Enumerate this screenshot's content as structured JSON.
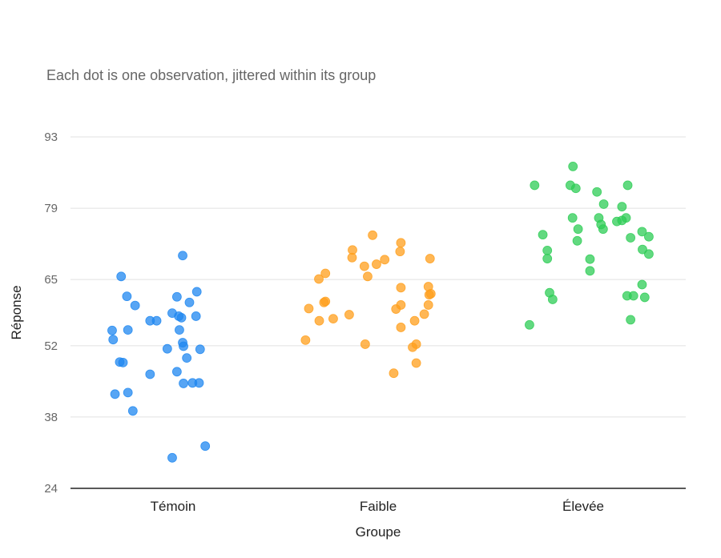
{
  "chart_data": {
    "type": "scatter",
    "subtitle": "Each dot is one observation, jittered within its group",
    "xlabel": "Groupe",
    "ylabel": "Réponse",
    "ylim": [
      24,
      93
    ],
    "yticks": [
      24,
      38,
      52,
      65,
      79,
      93
    ],
    "ytick_labels": [
      "24",
      "38",
      "52",
      "65",
      "79",
      "93"
    ],
    "grid": true,
    "categories": [
      "Témoin",
      "Faible",
      "Élevée"
    ],
    "colors": [
      "#1f87f0",
      "#ff9f1c",
      "#2ecc55"
    ],
    "series": [
      {
        "category": "Témoin",
        "points": [
          {
            "offset": -0.253,
            "y": 65.6
          },
          {
            "offset": 0.047,
            "y": 69.7
          },
          {
            "offset": -0.225,
            "y": 61.7
          },
          {
            "offset": 0.019,
            "y": 61.6
          },
          {
            "offset": 0.116,
            "y": 62.6
          },
          {
            "offset": 0.08,
            "y": 60.5
          },
          {
            "offset": -0.185,
            "y": 59.9
          },
          {
            "offset": -0.004,
            "y": 58.4
          },
          {
            "offset": 0.028,
            "y": 57.8
          },
          {
            "offset": 0.041,
            "y": 57.5
          },
          {
            "offset": 0.112,
            "y": 57.8
          },
          {
            "offset": -0.112,
            "y": 56.9
          },
          {
            "offset": -0.08,
            "y": 56.9
          },
          {
            "offset": -0.297,
            "y": 55.0
          },
          {
            "offset": -0.22,
            "y": 55.1
          },
          {
            "offset": 0.031,
            "y": 55.1
          },
          {
            "offset": -0.292,
            "y": 53.2
          },
          {
            "offset": 0.047,
            "y": 52.6
          },
          {
            "offset": 0.051,
            "y": 51.9
          },
          {
            "offset": -0.028,
            "y": 51.4
          },
          {
            "offset": 0.132,
            "y": 51.3
          },
          {
            "offset": 0.067,
            "y": 49.6
          },
          {
            "offset": -0.26,
            "y": 48.8
          },
          {
            "offset": -0.244,
            "y": 48.7
          },
          {
            "offset": 0.019,
            "y": 46.9
          },
          {
            "offset": -0.112,
            "y": 46.4
          },
          {
            "offset": 0.051,
            "y": 44.6
          },
          {
            "offset": 0.095,
            "y": 44.7
          },
          {
            "offset": 0.127,
            "y": 44.7
          },
          {
            "offset": -0.283,
            "y": 42.5
          },
          {
            "offset": -0.22,
            "y": 42.8
          },
          {
            "offset": -0.196,
            "y": 39.2
          },
          {
            "offset": 0.157,
            "y": 32.3
          },
          {
            "offset": -0.004,
            "y": 30.0
          }
        ]
      },
      {
        "category": "Faible",
        "points": [
          {
            "offset": -0.027,
            "y": 73.7
          },
          {
            "offset": 0.111,
            "y": 72.2
          },
          {
            "offset": -0.125,
            "y": 70.8
          },
          {
            "offset": 0.107,
            "y": 70.5
          },
          {
            "offset": -0.127,
            "y": 69.3
          },
          {
            "offset": 0.032,
            "y": 68.9
          },
          {
            "offset": -0.008,
            "y": 68.0
          },
          {
            "offset": -0.067,
            "y": 67.6
          },
          {
            "offset": 0.253,
            "y": 69.1
          },
          {
            "offset": -0.257,
            "y": 66.2
          },
          {
            "offset": -0.289,
            "y": 65.1
          },
          {
            "offset": -0.051,
            "y": 65.6
          },
          {
            "offset": 0.245,
            "y": 63.6
          },
          {
            "offset": 0.111,
            "y": 63.4
          },
          {
            "offset": 0.249,
            "y": 62.0
          },
          {
            "offset": 0.257,
            "y": 62.2
          },
          {
            "offset": -0.264,
            "y": 60.5
          },
          {
            "offset": -0.257,
            "y": 60.7
          },
          {
            "offset": 0.245,
            "y": 60.0
          },
          {
            "offset": 0.111,
            "y": 60.0
          },
          {
            "offset": 0.087,
            "y": 59.2
          },
          {
            "offset": -0.338,
            "y": 59.3
          },
          {
            "offset": -0.141,
            "y": 58.1
          },
          {
            "offset": 0.225,
            "y": 58.2
          },
          {
            "offset": -0.219,
            "y": 57.3
          },
          {
            "offset": -0.287,
            "y": 56.9
          },
          {
            "offset": 0.178,
            "y": 56.9
          },
          {
            "offset": 0.111,
            "y": 55.6
          },
          {
            "offset": -0.354,
            "y": 53.1
          },
          {
            "offset": -0.063,
            "y": 52.3
          },
          {
            "offset": 0.186,
            "y": 52.3
          },
          {
            "offset": 0.168,
            "y": 51.7
          },
          {
            "offset": 0.186,
            "y": 48.6
          },
          {
            "offset": 0.076,
            "y": 46.6
          }
        ]
      },
      {
        "category": "Élevée",
        "points": [
          {
            "offset": -0.05,
            "y": 87.2
          },
          {
            "offset": -0.237,
            "y": 83.5
          },
          {
            "offset": -0.063,
            "y": 83.5
          },
          {
            "offset": -0.036,
            "y": 82.9
          },
          {
            "offset": 0.067,
            "y": 82.2
          },
          {
            "offset": 0.217,
            "y": 83.5
          },
          {
            "offset": 0.1,
            "y": 79.8
          },
          {
            "offset": 0.189,
            "y": 79.3
          },
          {
            "offset": -0.052,
            "y": 77.1
          },
          {
            "offset": 0.076,
            "y": 77.1
          },
          {
            "offset": 0.209,
            "y": 77.1
          },
          {
            "offset": 0.189,
            "y": 76.6
          },
          {
            "offset": 0.164,
            "y": 76.4
          },
          {
            "offset": 0.087,
            "y": 75.8
          },
          {
            "offset": -0.025,
            "y": 74.9
          },
          {
            "offset": 0.097,
            "y": 74.9
          },
          {
            "offset": -0.197,
            "y": 73.8
          },
          {
            "offset": 0.287,
            "y": 74.4
          },
          {
            "offset": 0.231,
            "y": 73.2
          },
          {
            "offset": 0.32,
            "y": 73.4
          },
          {
            "offset": -0.029,
            "y": 72.6
          },
          {
            "offset": -0.175,
            "y": 70.7
          },
          {
            "offset": 0.289,
            "y": 70.9
          },
          {
            "offset": 0.32,
            "y": 70.0
          },
          {
            "offset": -0.175,
            "y": 69.1
          },
          {
            "offset": 0.033,
            "y": 69.0
          },
          {
            "offset": 0.033,
            "y": 66.7
          },
          {
            "offset": 0.287,
            "y": 64.0
          },
          {
            "offset": -0.164,
            "y": 62.4
          },
          {
            "offset": -0.149,
            "y": 61.1
          },
          {
            "offset": 0.214,
            "y": 61.8
          },
          {
            "offset": 0.245,
            "y": 61.8
          },
          {
            "offset": 0.3,
            "y": 61.5
          },
          {
            "offset": 0.231,
            "y": 57.1
          },
          {
            "offset": -0.262,
            "y": 56.1
          }
        ]
      }
    ]
  }
}
